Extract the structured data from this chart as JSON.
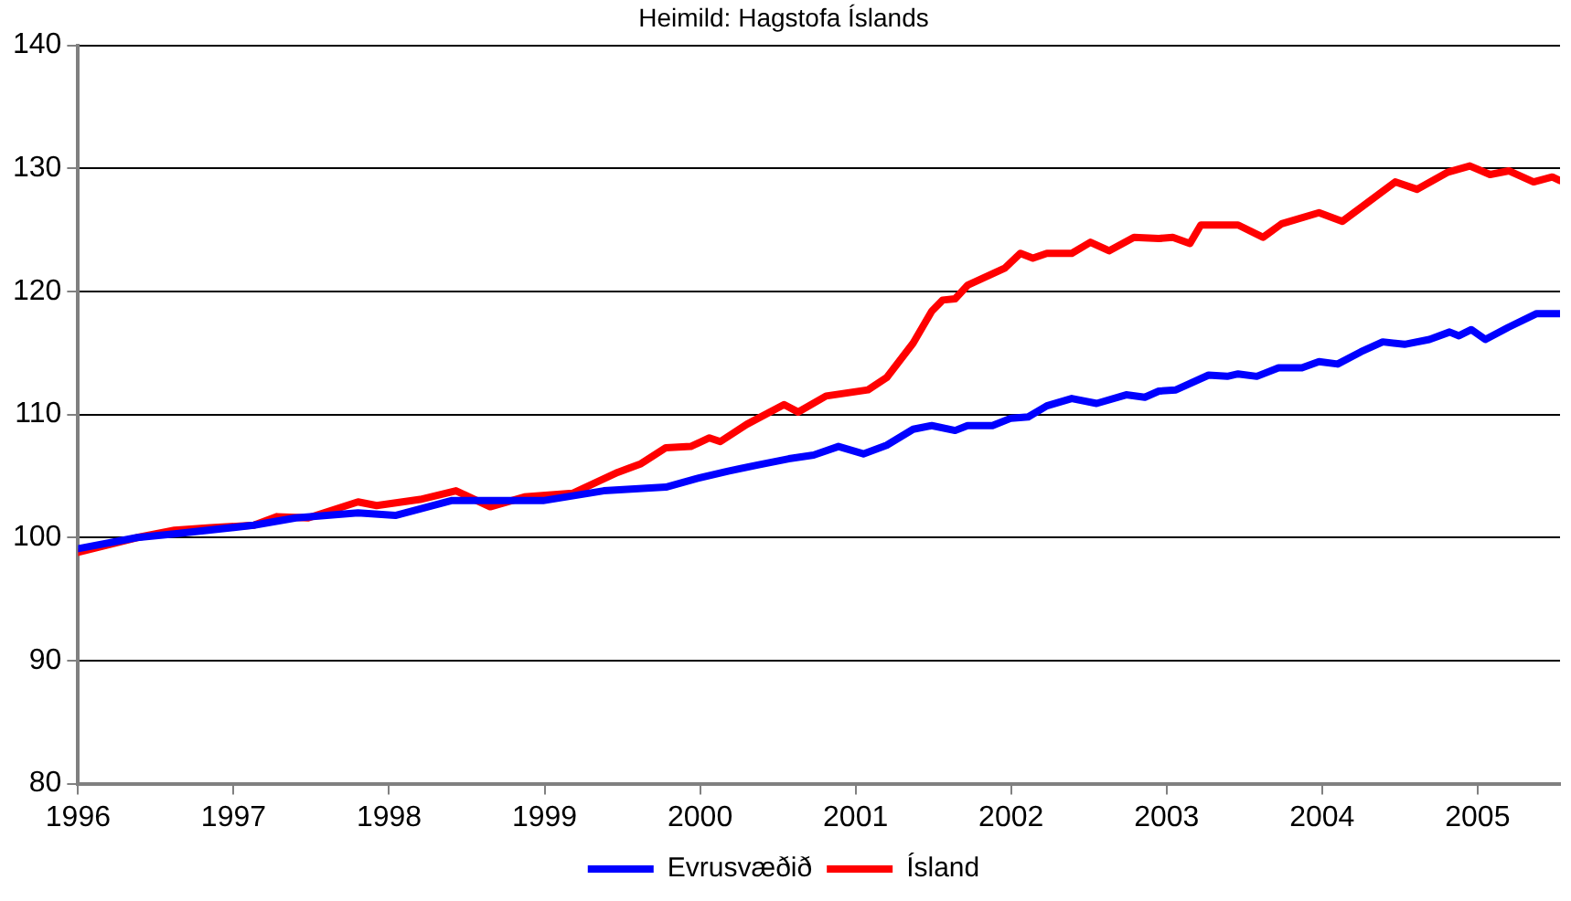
{
  "chart_data": {
    "type": "line",
    "title": "Heimild: Hagstofa Íslands",
    "xlim": [
      1996,
      2005.53
    ],
    "xticks": [
      1996,
      1997,
      1998,
      1999,
      2000,
      2001,
      2002,
      2003,
      2004,
      2005
    ],
    "ylim": [
      80,
      140
    ],
    "yticks": [
      80,
      90,
      100,
      110,
      120,
      130,
      140
    ],
    "grid": "y",
    "legend": "bottom",
    "marker": "none",
    "line_style": "solid",
    "series": [
      {
        "name": "Evrusvæðið",
        "color": "#0000ff",
        "x": [
          1996.0,
          1996.38,
          1996.62,
          1997.13,
          1997.4,
          1997.8,
          1998.04,
          1998.4,
          1998.99,
          1999.38,
          1999.78,
          1999.98,
          2000.18,
          2000.37,
          2000.57,
          2000.73,
          2000.89,
          2001.05,
          2001.2,
          2001.37,
          2001.49,
          2001.64,
          2001.72,
          2001.88,
          2002.0,
          2002.11,
          2002.23,
          2002.39,
          2002.55,
          2002.74,
          2002.86,
          2002.95,
          2003.06,
          2003.27,
          2003.39,
          2003.46,
          2003.58,
          2003.72,
          2003.87,
          2003.98,
          2004.1,
          2004.25,
          2004.39,
          2004.53,
          2004.69,
          2004.82,
          2004.88,
          2004.96,
          2005.05,
          2005.2,
          2005.38,
          2005.53
        ],
        "values": [
          99.1,
          100,
          100.3,
          101,
          101.6,
          102,
          101.8,
          103,
          103,
          103.8,
          104.1,
          104.8,
          105.4,
          105.9,
          106.4,
          106.7,
          107.4,
          106.8,
          107.5,
          108.8,
          109.1,
          108.7,
          109.1,
          109.1,
          109.7,
          109.8,
          110.7,
          111.3,
          110.9,
          111.6,
          111.4,
          111.9,
          112,
          113.2,
          113.1,
          113.3,
          113.1,
          113.8,
          113.8,
          114.3,
          114.1,
          115.1,
          115.9,
          115.7,
          116.1,
          116.7,
          116.4,
          116.9,
          116.1,
          117.1,
          118.2,
          118.2
        ]
      },
      {
        "name": "Ísland",
        "color": "#ff0000",
        "x": [
          1996.0,
          1996.38,
          1996.62,
          1996.85,
          1997.13,
          1997.28,
          1997.48,
          1997.8,
          1997.92,
          1998.2,
          1998.43,
          1998.65,
          1998.87,
          1999.18,
          1999.47,
          1999.62,
          1999.78,
          1999.94,
          2000.06,
          2000.13,
          2000.3,
          2000.54,
          2000.63,
          2000.81,
          2001.08,
          2001.2,
          2001.37,
          2001.49,
          2001.56,
          2001.64,
          2001.72,
          2001.96,
          2002.06,
          2002.14,
          2002.23,
          2002.39,
          2002.51,
          2002.63,
          2002.79,
          2002.95,
          2003.04,
          2003.15,
          2003.22,
          2003.46,
          2003.62,
          2003.74,
          2003.98,
          2004.13,
          2004.29,
          2004.47,
          2004.61,
          2004.81,
          2004.95,
          2005.08,
          2005.2,
          2005.36,
          2005.48,
          2005.53
        ],
        "values": [
          98.8,
          100,
          100.6,
          100.8,
          101,
          101.7,
          101.6,
          102.9,
          102.6,
          103.1,
          103.8,
          102.5,
          103.3,
          103.6,
          105.3,
          106,
          107.3,
          107.4,
          108.1,
          107.8,
          109.2,
          110.8,
          110.2,
          111.5,
          112,
          113,
          115.8,
          118.4,
          119.3,
          119.4,
          120.5,
          121.9,
          123.1,
          122.7,
          123.1,
          123.1,
          124,
          123.3,
          124.4,
          124.3,
          124.4,
          123.9,
          125.4,
          125.4,
          124.4,
          125.5,
          126.4,
          125.7,
          127.2,
          128.9,
          128.3,
          129.7,
          130.2,
          129.5,
          129.8,
          128.9,
          129.3,
          129
        ]
      }
    ]
  }
}
